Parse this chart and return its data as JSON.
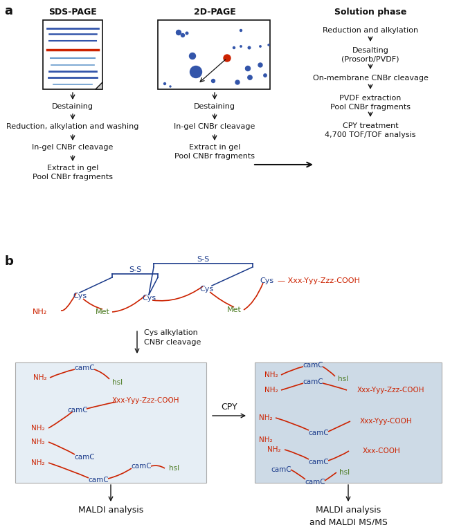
{
  "panel_a_label": "a",
  "panel_b_label": "b",
  "col1_header": "SDS-PAGE",
  "col2_header": "2D-PAGE",
  "col3_header": "Solution phase",
  "col1_steps": [
    "Destaining",
    "Reduction, alkylation and washing",
    "In-gel CNBr cleavage",
    "Extract in gel\nPool CNBr fragments"
  ],
  "col2_steps": [
    "Destaining",
    "In-gel CNBr cleavage",
    "Extract in gel\nPool CNBr fragments"
  ],
  "col3_steps": [
    "Reduction and alkylation",
    "Desalting\n(Prosorb/PVDF)",
    "On-membrane CNBr cleavage",
    "PVDF extraction\nPool CNBr fragments",
    "CPY treatment\n4,700 TOF/TOF analysis"
  ],
  "cys_alkylation_label": "Cys alkylation\nCNBr cleavage",
  "cpy_label": "CPY",
  "maldi_label": "MALDI analysis",
  "maldi_ms_label": "MALDI analysis\nand MALDI MS/MS",
  "red": "#cc2200",
  "blue": "#1a3a8a",
  "green": "#4a7a20",
  "black": "#111111",
  "dark_blue": "#3355aa",
  "band_blue_dark": "#3355aa",
  "band_blue_light": "#6699cc",
  "box_bg1": "#e6eef5",
  "box_bg2": "#cddae6"
}
